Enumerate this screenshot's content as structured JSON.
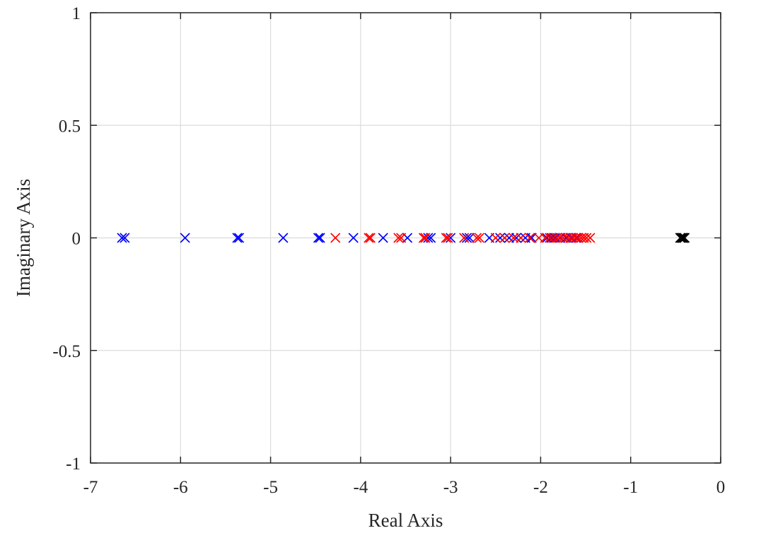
{
  "chart_data": {
    "type": "scatter",
    "title": "",
    "xlabel": "Real Axis",
    "ylabel": "Imaginary Axis",
    "xlim": [
      -7,
      0
    ],
    "ylim": [
      -1,
      1
    ],
    "xticks": [
      -7,
      -6,
      -5,
      -4,
      -3,
      -2,
      -1,
      0
    ],
    "yticks": [
      -1,
      -0.5,
      0,
      0.5,
      1
    ],
    "xtick_labels": [
      "-7",
      "-6",
      "-5",
      "-4",
      "-3",
      "-2",
      "-1",
      "0"
    ],
    "ytick_labels": [
      "-1",
      "-0.5",
      "0",
      "0.5",
      "1"
    ],
    "grid": true,
    "marker": "x",
    "series": [
      {
        "color": "#0000ff",
        "points": [
          [
            -6.65,
            0
          ],
          [
            -6.62,
            0
          ],
          [
            -5.95,
            0
          ],
          [
            -5.37,
            0
          ],
          [
            -5.35,
            0
          ],
          [
            -4.86,
            0
          ],
          [
            -4.47,
            0
          ],
          [
            -4.45,
            0
          ],
          [
            -4.08,
            0
          ],
          [
            -3.75,
            0
          ],
          [
            -3.48,
            0
          ],
          [
            -3.25,
            0
          ],
          [
            -3.22,
            0
          ],
          [
            -3.0,
            0
          ],
          [
            -2.82,
            0
          ],
          [
            -2.79,
            0
          ],
          [
            -2.57,
            0
          ],
          [
            -2.45,
            0
          ],
          [
            -2.35,
            0
          ],
          [
            -2.27,
            0
          ],
          [
            -2.17,
            0
          ],
          [
            -2.1,
            0
          ],
          [
            -1.93,
            0
          ],
          [
            -1.88,
            0
          ],
          [
            -1.84,
            0
          ],
          [
            -1.78,
            0
          ],
          [
            -1.72,
            0
          ],
          [
            -1.66,
            0
          ],
          [
            -1.6,
            0
          ]
        ]
      },
      {
        "color": "#ff0000",
        "points": [
          [
            -4.28,
            0
          ],
          [
            -3.91,
            0
          ],
          [
            -3.89,
            0
          ],
          [
            -3.58,
            0
          ],
          [
            -3.55,
            0
          ],
          [
            -3.3,
            0
          ],
          [
            -3.28,
            0
          ],
          [
            -3.05,
            0
          ],
          [
            -3.03,
            0
          ],
          [
            -2.85,
            0
          ],
          [
            -2.71,
            0
          ],
          [
            -2.68,
            0
          ],
          [
            -2.5,
            0
          ],
          [
            -2.4,
            0
          ],
          [
            -2.3,
            0
          ],
          [
            -2.22,
            0
          ],
          [
            -2.12,
            0
          ],
          [
            -2.02,
            0
          ],
          [
            -1.95,
            0
          ],
          [
            -1.9,
            0
          ],
          [
            -1.86,
            0
          ],
          [
            -1.82,
            0
          ],
          [
            -1.79,
            0
          ],
          [
            -1.75,
            0
          ],
          [
            -1.7,
            0
          ],
          [
            -1.67,
            0
          ],
          [
            -1.64,
            0
          ],
          [
            -1.61,
            0
          ],
          [
            -1.58,
            0
          ],
          [
            -1.55,
            0
          ],
          [
            -1.52,
            0
          ],
          [
            -1.49,
            0
          ],
          [
            -1.45,
            0
          ]
        ]
      },
      {
        "color": "#000000",
        "points": [
          [
            -0.45,
            0
          ],
          [
            -0.44,
            0
          ],
          [
            -0.43,
            0
          ],
          [
            -0.42,
            0
          ],
          [
            -0.41,
            0
          ],
          [
            -0.4,
            0
          ]
        ]
      }
    ]
  }
}
